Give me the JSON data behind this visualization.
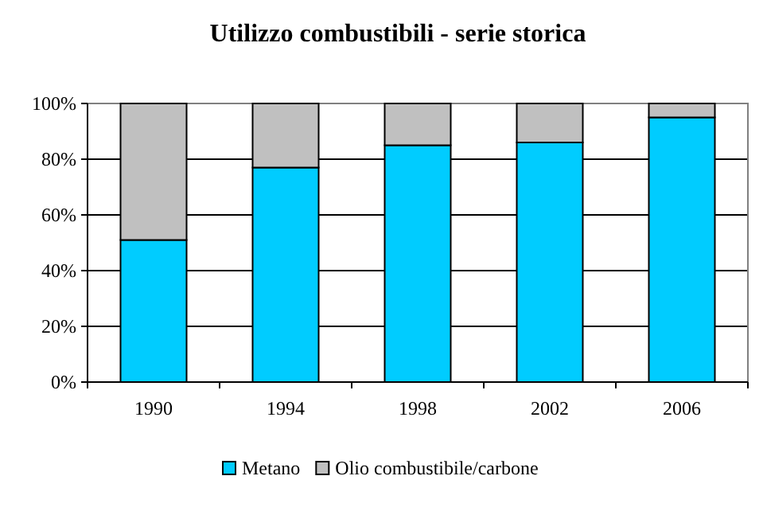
{
  "chart_data": {
    "type": "bar",
    "title": "Utilizzo combustibili - serie storica",
    "categories": [
      "1990",
      "1994",
      "1998",
      "2002",
      "2006"
    ],
    "stacked": true,
    "series": [
      {
        "name": "Metano",
        "color": "#00ccff",
        "values": [
          51,
          77,
          85,
          86,
          95
        ]
      },
      {
        "name": "Olio combustibile/carbone",
        "color": "#c0c0c0",
        "values": [
          49,
          23,
          15,
          14,
          5
        ]
      }
    ],
    "ylim": [
      0,
      100
    ],
    "yticks": [
      {
        "value": 0,
        "label": "0%"
      },
      {
        "value": 20,
        "label": "20%"
      },
      {
        "value": 40,
        "label": "40%"
      },
      {
        "value": 60,
        "label": "60%"
      },
      {
        "value": 80,
        "label": "80%"
      },
      {
        "value": 100,
        "label": "100%"
      }
    ],
    "grid": "y",
    "legend": "bottom"
  }
}
